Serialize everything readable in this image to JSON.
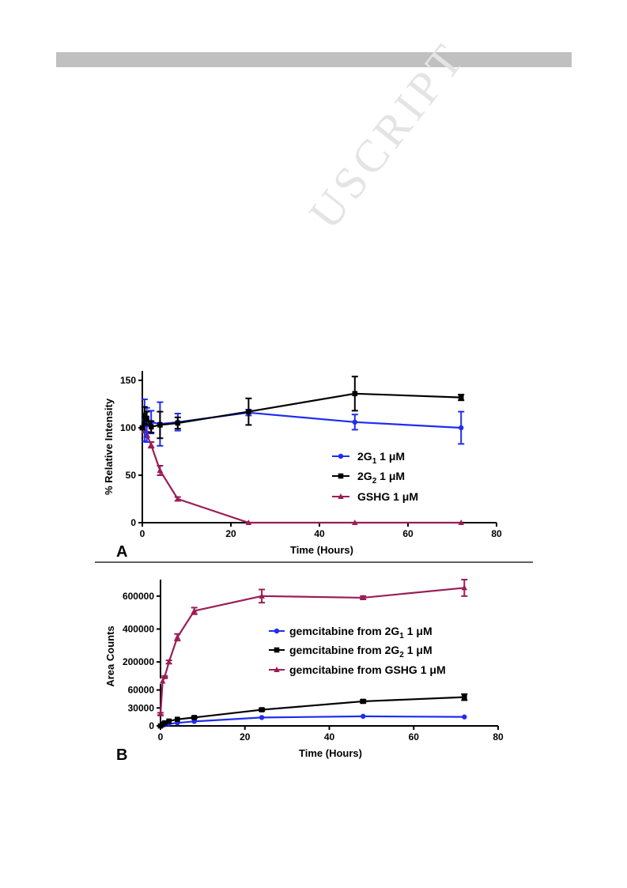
{
  "watermark": "USCRIPT",
  "chart_data": [
    {
      "panel": "A",
      "type": "line",
      "xlabel": "Time (Hours)",
      "ylabel": "% Relative Intensity",
      "xlim": [
        0,
        80
      ],
      "ylim": [
        0,
        160
      ],
      "xticks": [
        0,
        20,
        40,
        60,
        80
      ],
      "yticks": [
        0,
        50,
        100,
        150
      ],
      "legend_position": "center-right",
      "series": [
        {
          "name": "2G",
          "subscript": "1",
          "suffix": " 1 μM",
          "color": "#1f2df0",
          "marker": "circle",
          "x": [
            0,
            0.5,
            1,
            2,
            4,
            8,
            24,
            48,
            72
          ],
          "y": [
            100,
            108,
            103,
            106,
            104,
            106,
            116,
            106,
            100
          ],
          "err": [
            0,
            22,
            18,
            12,
            23,
            9,
            3,
            8,
            17
          ]
        },
        {
          "name": "2G",
          "subscript": "2",
          "suffix": " 1 μM",
          "color": "#000000",
          "marker": "square",
          "x": [
            0,
            0.5,
            1,
            2,
            4,
            8,
            24,
            48,
            72
          ],
          "y": [
            100,
            113,
            110,
            101,
            103,
            105,
            117,
            136,
            132
          ],
          "err": [
            0,
            9,
            7,
            6,
            14,
            6,
            14,
            18,
            3
          ]
        },
        {
          "name": "GSHG",
          "subscript": "",
          "suffix": " 1 μM",
          "color": "#9b1d56",
          "marker": "triangle",
          "x": [
            0,
            0.5,
            1,
            2,
            4,
            8,
            24,
            48,
            72
          ],
          "y": [
            100,
            98,
            93,
            82,
            55,
            25,
            0,
            0,
            0
          ],
          "err": [
            0,
            3,
            3,
            3,
            5,
            2,
            0,
            0,
            0
          ]
        }
      ]
    },
    {
      "panel": "B",
      "type": "line",
      "xlabel": "Time (Hours)",
      "ylabel": "Area Counts",
      "xlim": [
        0,
        80
      ],
      "broken_y_axis": true,
      "ylim_lower": [
        0,
        70000
      ],
      "ylim_upper": [
        100000,
        700000
      ],
      "yticks_lower": [
        0,
        30000,
        60000
      ],
      "yticks_upper": [
        200000,
        400000,
        600000
      ],
      "xticks": [
        0,
        20,
        40,
        60,
        80
      ],
      "legend_position": "center-right",
      "series": [
        {
          "name": "gemcitabine from 2G",
          "subscript": "1",
          "suffix": " 1 μM",
          "color": "#1f2df0",
          "marker": "circle",
          "x": [
            0,
            0.5,
            1,
            2,
            4,
            8,
            24,
            48,
            72
          ],
          "y": [
            0,
            1000,
            2000,
            3500,
            5000,
            7500,
            14000,
            16000,
            15000
          ],
          "err": [
            0,
            300,
            300,
            400,
            400,
            500,
            800,
            900,
            800
          ]
        },
        {
          "name": "gemcitabine from 2G",
          "subscript": "2",
          "suffix": " 1 μM",
          "color": "#000000",
          "marker": "square",
          "x": [
            0,
            0.5,
            1,
            2,
            4,
            8,
            24,
            48,
            72
          ],
          "y": [
            0,
            3000,
            5000,
            8000,
            11000,
            14000,
            27000,
            41000,
            48000
          ],
          "err": [
            0,
            500,
            600,
            800,
            1000,
            1500,
            2000,
            2500,
            5000
          ]
        },
        {
          "name": "gemcitabine from GSHG",
          "subscript": "",
          "suffix": " 1 μM",
          "color": "#9b1d56",
          "marker": "triangle",
          "x": [
            0,
            0.5,
            1,
            2,
            4,
            8,
            24,
            48,
            72
          ],
          "y": [
            20000,
            80000,
            110000,
            200000,
            350000,
            510000,
            600000,
            590000,
            650000
          ],
          "err": [
            2000,
            5000,
            5000,
            10000,
            20000,
            20000,
            40000,
            10000,
            50000
          ]
        }
      ]
    }
  ]
}
